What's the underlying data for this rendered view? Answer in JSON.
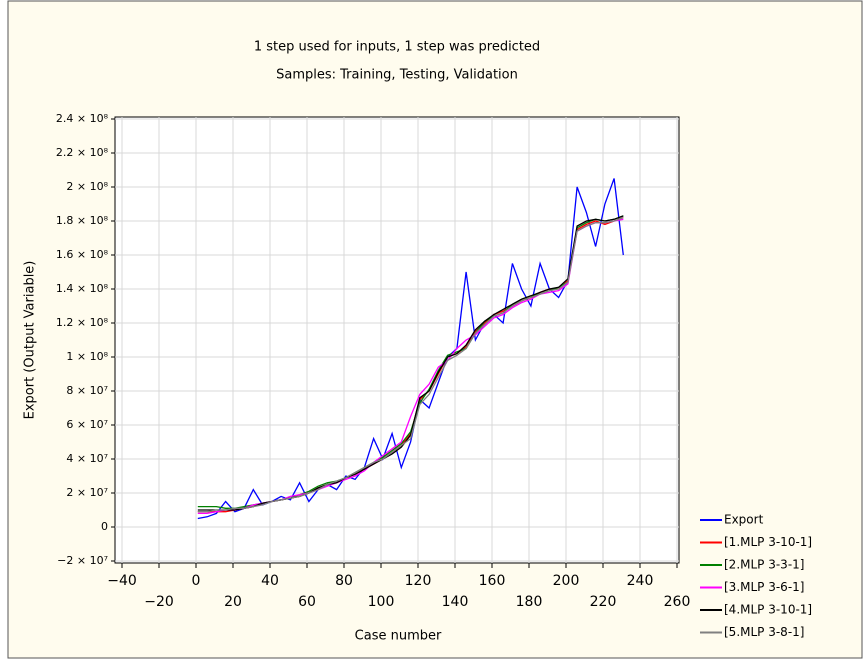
{
  "chart_data": {
    "type": "line",
    "title": "1 step used for inputs, 1 step was predicted",
    "subtitle": "Samples: Training, Testing, Validation",
    "x_label": "Case number",
    "y_label": "Export (Output Variable)",
    "xlim": [
      -40,
      260
    ],
    "ylim": [
      -20000000.0,
      240000000.0
    ],
    "xticks": [
      {
        "value": -40,
        "label": "−40"
      },
      {
        "value": -20,
        "label": "−20"
      },
      0,
      20,
      40,
      60,
      80,
      100,
      120,
      140,
      160,
      180,
      200,
      220,
      240,
      260
    ],
    "yticks": [
      {
        "value": -20000000.0,
        "label": "−2 × 10⁷"
      },
      0,
      {
        "value": 20000000.0,
        "label": "2 × 10⁷"
      },
      {
        "value": 40000000.0,
        "label": "4 × 10⁷"
      },
      {
        "value": 60000000.0,
        "label": "6 × 10⁷"
      },
      {
        "value": 80000000.0,
        "label": "8 × 10⁷"
      },
      {
        "value": 100000000.0,
        "label": "1 × 10⁸"
      },
      {
        "value": 120000000.0,
        "label": "1.2 × 10⁸"
      },
      {
        "value": 140000000.0,
        "label": "1.4 × 10⁸"
      },
      {
        "value": 160000000.0,
        "label": "1.6 × 10⁸"
      },
      {
        "value": 180000000.0,
        "label": "1.8 × 10⁸"
      },
      {
        "value": 200000000.0,
        "label": "2 × 10⁸"
      },
      {
        "value": 220000000.0,
        "label": "2.2 × 10⁸"
      },
      {
        "value": 240000000.0,
        "label": "2.4 × 10⁸"
      }
    ],
    "grid": true,
    "legend": "bottom-right",
    "x": [
      1,
      6,
      11,
      16,
      21,
      26,
      31,
      36,
      41,
      46,
      51,
      56,
      61,
      66,
      71,
      76,
      81,
      86,
      91,
      96,
      101,
      106,
      111,
      116,
      121,
      126,
      131,
      136,
      141,
      146,
      151,
      156,
      161,
      166,
      171,
      176,
      181,
      186,
      191,
      196,
      201,
      206,
      211,
      216,
      221,
      226,
      231
    ],
    "series": [
      {
        "name": "Export",
        "color": "#0000ff",
        "values": [
          5000000.0,
          6000000.0,
          8000000.0,
          15000000.0,
          9000000.0,
          11000000.0,
          22000000.0,
          13000000.0,
          15000000.0,
          18000000.0,
          16000000.0,
          26000000.0,
          15000000.0,
          22000000.0,
          25000000.0,
          22000000.0,
          30000000.0,
          28000000.0,
          35000000.0,
          52000000.0,
          40000000.0,
          55000000.0,
          35000000.0,
          50000000.0,
          75000000.0,
          70000000.0,
          85000000.0,
          100000000.0,
          105000000.0,
          150000000.0,
          110000000.0,
          120000000.0,
          125000000.0,
          120000000.0,
          155000000.0,
          140000000.0,
          130000000.0,
          155000000.0,
          140000000.0,
          135000000.0,
          145000000.0,
          200000000.0,
          185000000.0,
          165000000.0,
          190000000.0,
          205000000.0,
          160000000.0
        ]
      },
      {
        "name": "[1.MLP 3-10-1]",
        "color": "#ff0000",
        "values": [
          9000000.0,
          9000000.0,
          9000000.0,
          9000000.0,
          10000000.0,
          11000000.0,
          12000000.0,
          14000000.0,
          15000000.0,
          16000000.0,
          17000000.0,
          18000000.0,
          20000000.0,
          23000000.0,
          25000000.0,
          26000000.0,
          29000000.0,
          31000000.0,
          34000000.0,
          37000000.0,
          40000000.0,
          44000000.0,
          48000000.0,
          55000000.0,
          75000000.0,
          80000000.0,
          90000000.0,
          100000000.0,
          102000000.0,
          106000000.0,
          115000000.0,
          120000000.0,
          125000000.0,
          127000000.0,
          130000000.0,
          133000000.0,
          135000000.0,
          138000000.0,
          140000000.0,
          140000000.0,
          145000000.0,
          175000000.0,
          178000000.0,
          180000000.0,
          178000000.0,
          180000000.0,
          182000000.0
        ]
      },
      {
        "name": "[2.MLP 3-3-1]",
        "color": "#008000",
        "values": [
          12000000.0,
          12000000.0,
          12000000.0,
          11000000.0,
          11000000.0,
          12000000.0,
          13000000.0,
          14000000.0,
          15000000.0,
          16000000.0,
          17000000.0,
          19000000.0,
          21000000.0,
          24000000.0,
          26000000.0,
          27000000.0,
          29000000.0,
          32000000.0,
          35000000.0,
          38000000.0,
          41000000.0,
          45000000.0,
          49000000.0,
          56000000.0,
          73000000.0,
          81000000.0,
          92000000.0,
          101000000.0,
          103000000.0,
          105000000.0,
          114000000.0,
          121000000.0,
          124000000.0,
          126000000.0,
          131000000.0,
          134000000.0,
          136000000.0,
          137000000.0,
          139000000.0,
          141000000.0,
          144000000.0,
          176000000.0,
          179000000.0,
          181000000.0,
          180000000.0,
          181000000.0,
          183000000.0
        ]
      },
      {
        "name": "[3.MLP 3-6-1]",
        "color": "#ff00ff",
        "values": [
          8000000.0,
          8000000.0,
          9000000.0,
          10000000.0,
          10000000.0,
          11000000.0,
          13000000.0,
          14000000.0,
          15000000.0,
          16000000.0,
          18000000.0,
          19000000.0,
          20000000.0,
          22000000.0,
          24000000.0,
          26000000.0,
          28000000.0,
          30000000.0,
          33000000.0,
          38000000.0,
          42000000.0,
          46000000.0,
          50000000.0,
          65000000.0,
          78000000.0,
          84000000.0,
          94000000.0,
          98000000.0,
          105000000.0,
          110000000.0,
          113000000.0,
          118000000.0,
          123000000.0,
          125000000.0,
          129000000.0,
          132000000.0,
          134000000.0,
          137000000.0,
          138000000.0,
          139000000.0,
          143000000.0,
          174000000.0,
          177000000.0,
          179000000.0,
          179000000.0,
          180000000.0,
          181000000.0
        ]
      },
      {
        "name": "[4.MLP 3-10-1]",
        "color": "#000000",
        "values": [
          10000000.0,
          10000000.0,
          10000000.0,
          10000000.0,
          10000000.0,
          11000000.0,
          12000000.0,
          14000000.0,
          15000000.0,
          16000000.0,
          17000000.0,
          18000000.0,
          20000000.0,
          23000000.0,
          25000000.0,
          26000000.0,
          29000000.0,
          31000000.0,
          34000000.0,
          37000000.0,
          40000000.0,
          43000000.0,
          47000000.0,
          54000000.0,
          76000000.0,
          80000000.0,
          91000000.0,
          100000000.0,
          102000000.0,
          107000000.0,
          116000000.0,
          121000000.0,
          125000000.0,
          128000000.0,
          131000000.0,
          134000000.0,
          136000000.0,
          138000000.0,
          140000000.0,
          141000000.0,
          146000000.0,
          177000000.0,
          180000000.0,
          181000000.0,
          180000000.0,
          181000000.0,
          183000000.0
        ]
      },
      {
        "name": "[5.MLP 3-8-1]",
        "color": "#808080",
        "values": [
          9000000.0,
          9000000.0,
          10000000.0,
          10000000.0,
          11000000.0,
          11000000.0,
          12000000.0,
          13000000.0,
          15000000.0,
          16000000.0,
          17000000.0,
          18000000.0,
          20000000.0,
          22000000.0,
          25000000.0,
          27000000.0,
          29000000.0,
          32000000.0,
          35000000.0,
          38000000.0,
          40000000.0,
          44000000.0,
          48000000.0,
          52000000.0,
          72000000.0,
          78000000.0,
          88000000.0,
          98000000.0,
          101000000.0,
          105000000.0,
          114000000.0,
          119000000.0,
          124000000.0,
          126000000.0,
          130000000.0,
          133000000.0,
          135000000.0,
          137000000.0,
          139000000.0,
          140000000.0,
          144000000.0,
          174000000.0,
          177000000.0,
          179000000.0,
          179000000.0,
          180000000.0,
          182000000.0
        ]
      }
    ]
  }
}
